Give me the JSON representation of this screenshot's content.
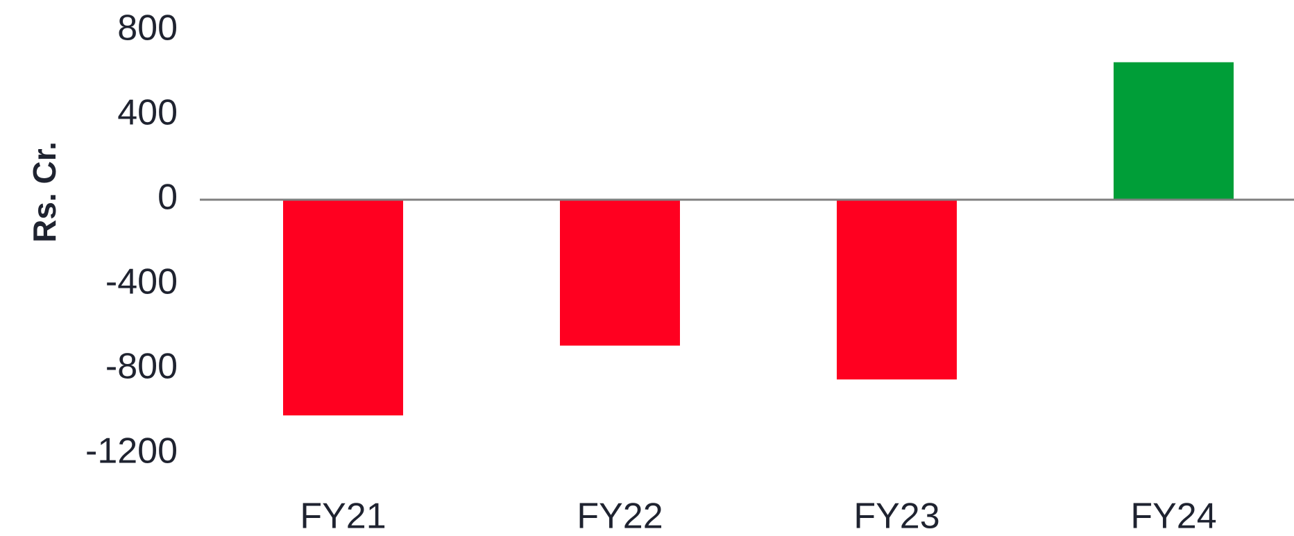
{
  "chart_data": {
    "type": "bar",
    "y_label": "Rs. Cr.",
    "categories": [
      "FY21",
      "FY22",
      "FY23",
      "FY24"
    ],
    "values": [
      -1020,
      -690,
      -850,
      650
    ],
    "colors": [
      "#ff0020",
      "#ff0020",
      "#ff0020",
      "#009e38"
    ],
    "ylim": [
      -1200,
      800
    ],
    "yticks": [
      800,
      400,
      0,
      -400,
      -800,
      -1200
    ],
    "grid": false
  }
}
